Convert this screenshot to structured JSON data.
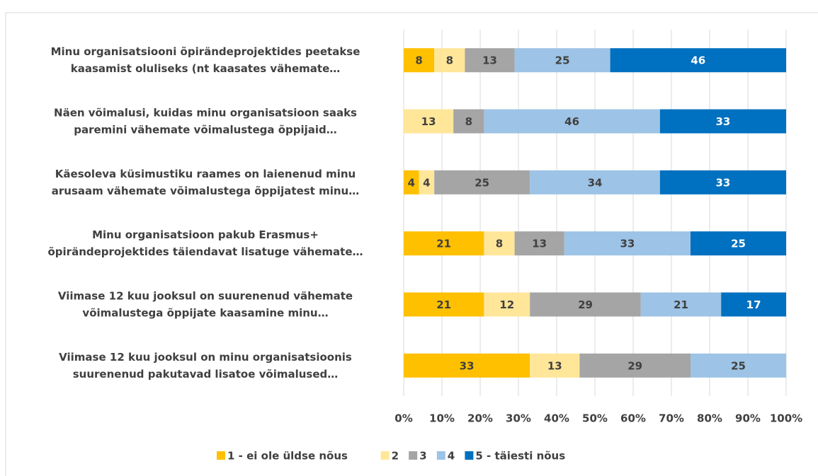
{
  "chart_data": {
    "type": "stacked_bar_100",
    "categories": [
      "Minu organisatsiooni õpirändeprojektides peetakse\nkaasamist oluliseks (nt kaasates vähemate…",
      "Näen võimalusi, kuidas minu organisatsioon saaks\nparemini vähemate võimalustega õppijaid…",
      "Käesoleva küsimustiku raames on laienenud minu\narusaam vähemate võimalustega õppijatest minu…",
      "Minu organisatsioon pakub Erasmus+\nõpirändeprojektides täiendavat lisatuge vähemate…",
      "Viimase 12 kuu jooksul on suurenenud vähemate\nvõimalustega õppijate kaasamine minu…",
      "Viimase 12 kuu jooksul on minu organisatsioonis\nsuurenenud pakutavad lisatoe võimalused…"
    ],
    "series": [
      {
        "name": "1 - ei ole üldse nõus",
        "color": "#ffc000",
        "values": [
          8,
          null,
          4,
          21,
          21,
          33
        ]
      },
      {
        "name": "2",
        "color": "#ffe699",
        "values": [
          8,
          13,
          4,
          8,
          12,
          13
        ]
      },
      {
        "name": "3",
        "color": "#a5a5a5",
        "values": [
          13,
          8,
          25,
          13,
          29,
          29
        ]
      },
      {
        "name": "4",
        "color": "#9dc3e6",
        "values": [
          25,
          46,
          34,
          33,
          21,
          25
        ]
      },
      {
        "name": "5 - täiesti nõus",
        "color": "#0070c0",
        "values": [
          46,
          33,
          33,
          25,
          17,
          null
        ]
      }
    ],
    "xlim": [
      0,
      100
    ],
    "xticks": [
      {
        "value": 0,
        "label": "0%"
      },
      {
        "value": 10,
        "label": "10%"
      },
      {
        "value": 20,
        "label": "20%"
      },
      {
        "value": 30,
        "label": "30%"
      },
      {
        "value": 40,
        "label": "40%"
      },
      {
        "value": 50,
        "label": "50%"
      },
      {
        "value": 60,
        "label": "60%"
      },
      {
        "value": 70,
        "label": "70%"
      },
      {
        "value": 80,
        "label": "80%"
      },
      {
        "value": 90,
        "label": "90%"
      },
      {
        "value": 100,
        "label": "100%"
      }
    ],
    "grid": true,
    "legend": "bottom"
  }
}
